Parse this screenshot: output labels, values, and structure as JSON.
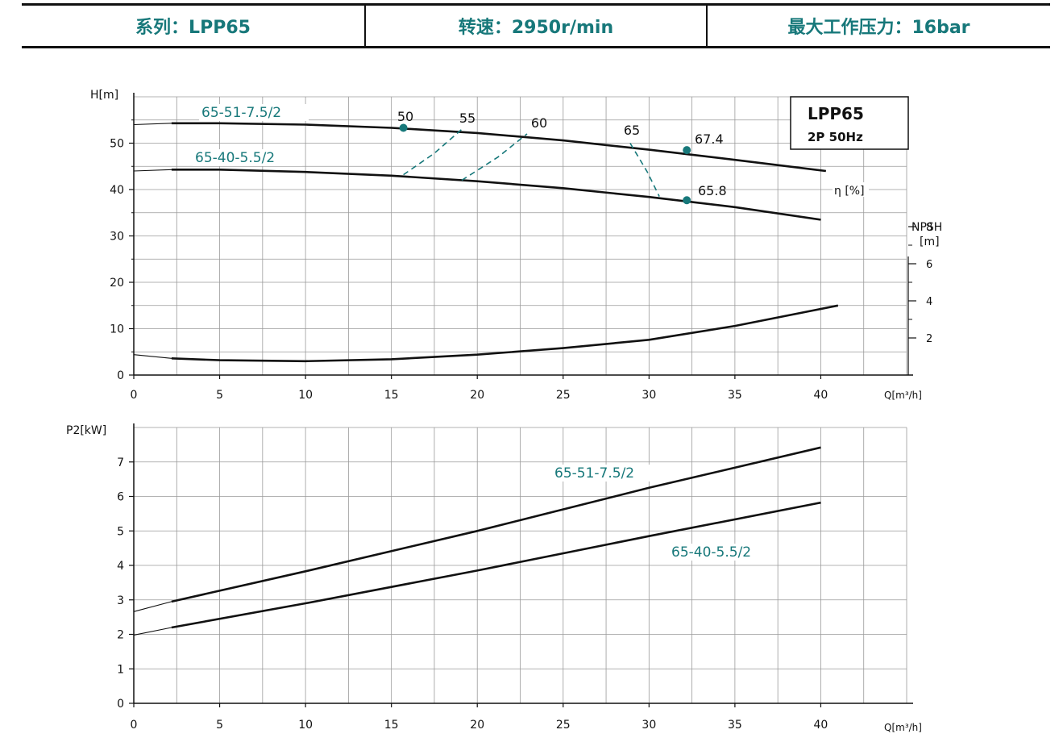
{
  "header": {
    "series": "系列：LPP65",
    "speed": "转速：2950r/min",
    "pressure": "最大工作压力：16bar"
  },
  "colors": {
    "curve": "#111111",
    "accent": "#17787a",
    "grid": "#9a9a9a"
  },
  "chart_data": [
    {
      "type": "line",
      "title": "LPP65",
      "subtitle": "2P  50Hz",
      "xlabel": "Q[m³/h]",
      "ylabel": "H[m]",
      "y2label_line1": "NPSH",
      "y2label_line2": "[m]",
      "eta_label": "η [%]",
      "xlim": [
        0,
        45
      ],
      "ylim": [
        0,
        60
      ],
      "y2lim": [
        0,
        15
      ],
      "xticks": [
        0,
        5,
        10,
        15,
        20,
        25,
        30,
        35,
        40
      ],
      "yticks": [
        0,
        10,
        20,
        30,
        40,
        50
      ],
      "y2ticks": [
        2,
        4,
        6,
        8
      ],
      "grid": true,
      "series": [
        {
          "name": "65-51-7.5/2",
          "kind": "head",
          "x": [
            0,
            2.2,
            5,
            10,
            15,
            20,
            25,
            30,
            35,
            40.3
          ],
          "y": [
            54.0,
            54.3,
            54.3,
            54.0,
            53.3,
            52.2,
            50.6,
            48.6,
            46.4,
            44.0
          ]
        },
        {
          "name": "65-40-5.5/2",
          "kind": "head",
          "x": [
            0,
            2.2,
            5,
            10,
            15,
            20,
            25,
            30,
            35,
            40
          ],
          "y": [
            44.0,
            44.3,
            44.3,
            43.8,
            43.0,
            41.8,
            40.3,
            38.4,
            36.2,
            33.5
          ]
        },
        {
          "name": "",
          "kind": "npsh",
          "x": [
            0,
            2.2,
            5,
            10,
            15,
            20,
            25,
            30,
            35,
            41
          ],
          "y": [
            1.1,
            0.9,
            0.8,
            0.75,
            0.85,
            1.1,
            1.45,
            1.9,
            2.65,
            3.75
          ]
        }
      ],
      "efficiency_lines": [
        {
          "label": "50",
          "x": [
            15.7
          ],
          "y": [
            53.3
          ]
        },
        {
          "label": "55",
          "x": [
            15.7,
            17.5,
            19.1
          ],
          "y": [
            43.2,
            47.8,
            53.0
          ]
        },
        {
          "label": "60",
          "x": [
            19.1,
            21.2,
            22.9
          ],
          "y": [
            42.0,
            47.0,
            52.0
          ]
        },
        {
          "label": "65",
          "x": [
            28.9,
            29.9,
            30.6
          ],
          "y": [
            50.0,
            43.8,
            38.5
          ]
        }
      ],
      "best_points": [
        {
          "label": "67.4",
          "x": 32.2,
          "y": 48.5
        },
        {
          "label": "65.8",
          "x": 32.2,
          "y": 37.7
        },
        {
          "label": "",
          "x": 15.7,
          "y": 53.3
        }
      ]
    },
    {
      "type": "line",
      "xlabel": "Q[m³/h]",
      "ylabel": "P2[kW]",
      "xlim": [
        0,
        45
      ],
      "ylim": [
        0,
        8
      ],
      "xticks": [
        0,
        5,
        10,
        15,
        20,
        25,
        30,
        35,
        40
      ],
      "yticks": [
        0,
        1,
        2,
        3,
        4,
        5,
        6,
        7
      ],
      "grid": true,
      "series": [
        {
          "name": "65-51-7.5/2",
          "x": [
            0,
            2.2,
            10,
            20,
            30,
            40
          ],
          "y": [
            2.66,
            2.95,
            3.83,
            5.0,
            6.25,
            7.42
          ]
        },
        {
          "name": "65-40-5.5/2",
          "x": [
            0,
            2.2,
            10,
            20,
            30,
            40
          ],
          "y": [
            1.98,
            2.2,
            2.9,
            3.85,
            4.85,
            5.82
          ]
        }
      ]
    }
  ]
}
